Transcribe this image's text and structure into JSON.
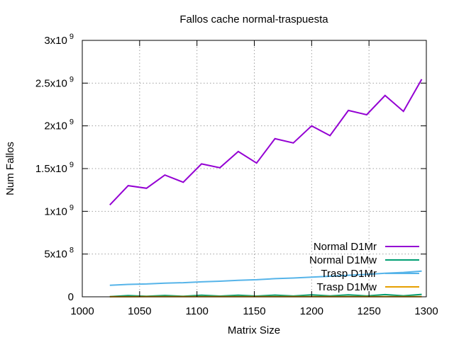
{
  "chart_data": {
    "type": "line",
    "title": "Fallos cache normal-traspuesta",
    "xlabel": "Matrix Size",
    "ylabel": "Num Fallos",
    "xlim": [
      1000,
      1300
    ],
    "ylim": [
      0,
      3000000000
    ],
    "grid": true,
    "legend_position": "bottom-right",
    "x_ticks": [
      {
        "value": 1000,
        "label": "1000"
      },
      {
        "value": 1050,
        "label": "1050"
      },
      {
        "value": 1100,
        "label": "1100"
      },
      {
        "value": 1150,
        "label": "1150"
      },
      {
        "value": 1200,
        "label": "1200"
      },
      {
        "value": 1250,
        "label": "1250"
      },
      {
        "value": 1300,
        "label": "1300"
      }
    ],
    "y_ticks": [
      {
        "value": 0,
        "mant": "0",
        "exp": ""
      },
      {
        "value": 500000000,
        "mant": "5x10",
        "exp": "8"
      },
      {
        "value": 1000000000,
        "mant": "1x10",
        "exp": "9"
      },
      {
        "value": 1500000000,
        "mant": "1.5x10",
        "exp": "9"
      },
      {
        "value": 2000000000,
        "mant": "2x10",
        "exp": "9"
      },
      {
        "value": 2500000000,
        "mant": "2.5x10",
        "exp": "9"
      },
      {
        "value": 3000000000,
        "mant": "3x10",
        "exp": "9"
      }
    ],
    "x": [
      1024,
      1040,
      1056,
      1072,
      1088,
      1104,
      1120,
      1136,
      1152,
      1168,
      1184,
      1200,
      1216,
      1232,
      1248,
      1264,
      1280,
      1296
    ],
    "series": [
      {
        "name": "Normal D1Mr",
        "color": "#9400d3",
        "values": [
          1075000000,
          1300000000,
          1270000000,
          1425000000,
          1340000000,
          1555000000,
          1510000000,
          1700000000,
          1565000000,
          1850000000,
          1800000000,
          2000000000,
          1885000000,
          2180000000,
          2130000000,
          2355000000,
          2170000000,
          2545000000
        ]
      },
      {
        "name": "Normal D1Mw",
        "color": "#009e73",
        "values": [
          2000000,
          14000000,
          6000000,
          16000000,
          6000000,
          18000000,
          8000000,
          18000000,
          8000000,
          20000000,
          9000000,
          22000000,
          10000000,
          22000000,
          11000000,
          26000000,
          12000000,
          28000000
        ]
      },
      {
        "name": "Trasp D1Mr",
        "color": "#56b4e9",
        "values": [
          135000000,
          145000000,
          150000000,
          160000000,
          165000000,
          175000000,
          182000000,
          192000000,
          200000000,
          212000000,
          220000000,
          230000000,
          240000000,
          252000000,
          262000000,
          275000000,
          285000000,
          300000000
        ]
      },
      {
        "name": "Trasp D1Mw",
        "color": "#e69f00",
        "values": [
          1000000,
          1200000,
          1300000,
          1400000,
          1500000,
          1600000,
          1700000,
          1800000,
          1900000,
          2000000,
          2100000,
          2200000,
          2300000,
          2400000,
          2500000,
          2600000,
          2700000,
          2800000
        ]
      }
    ]
  }
}
